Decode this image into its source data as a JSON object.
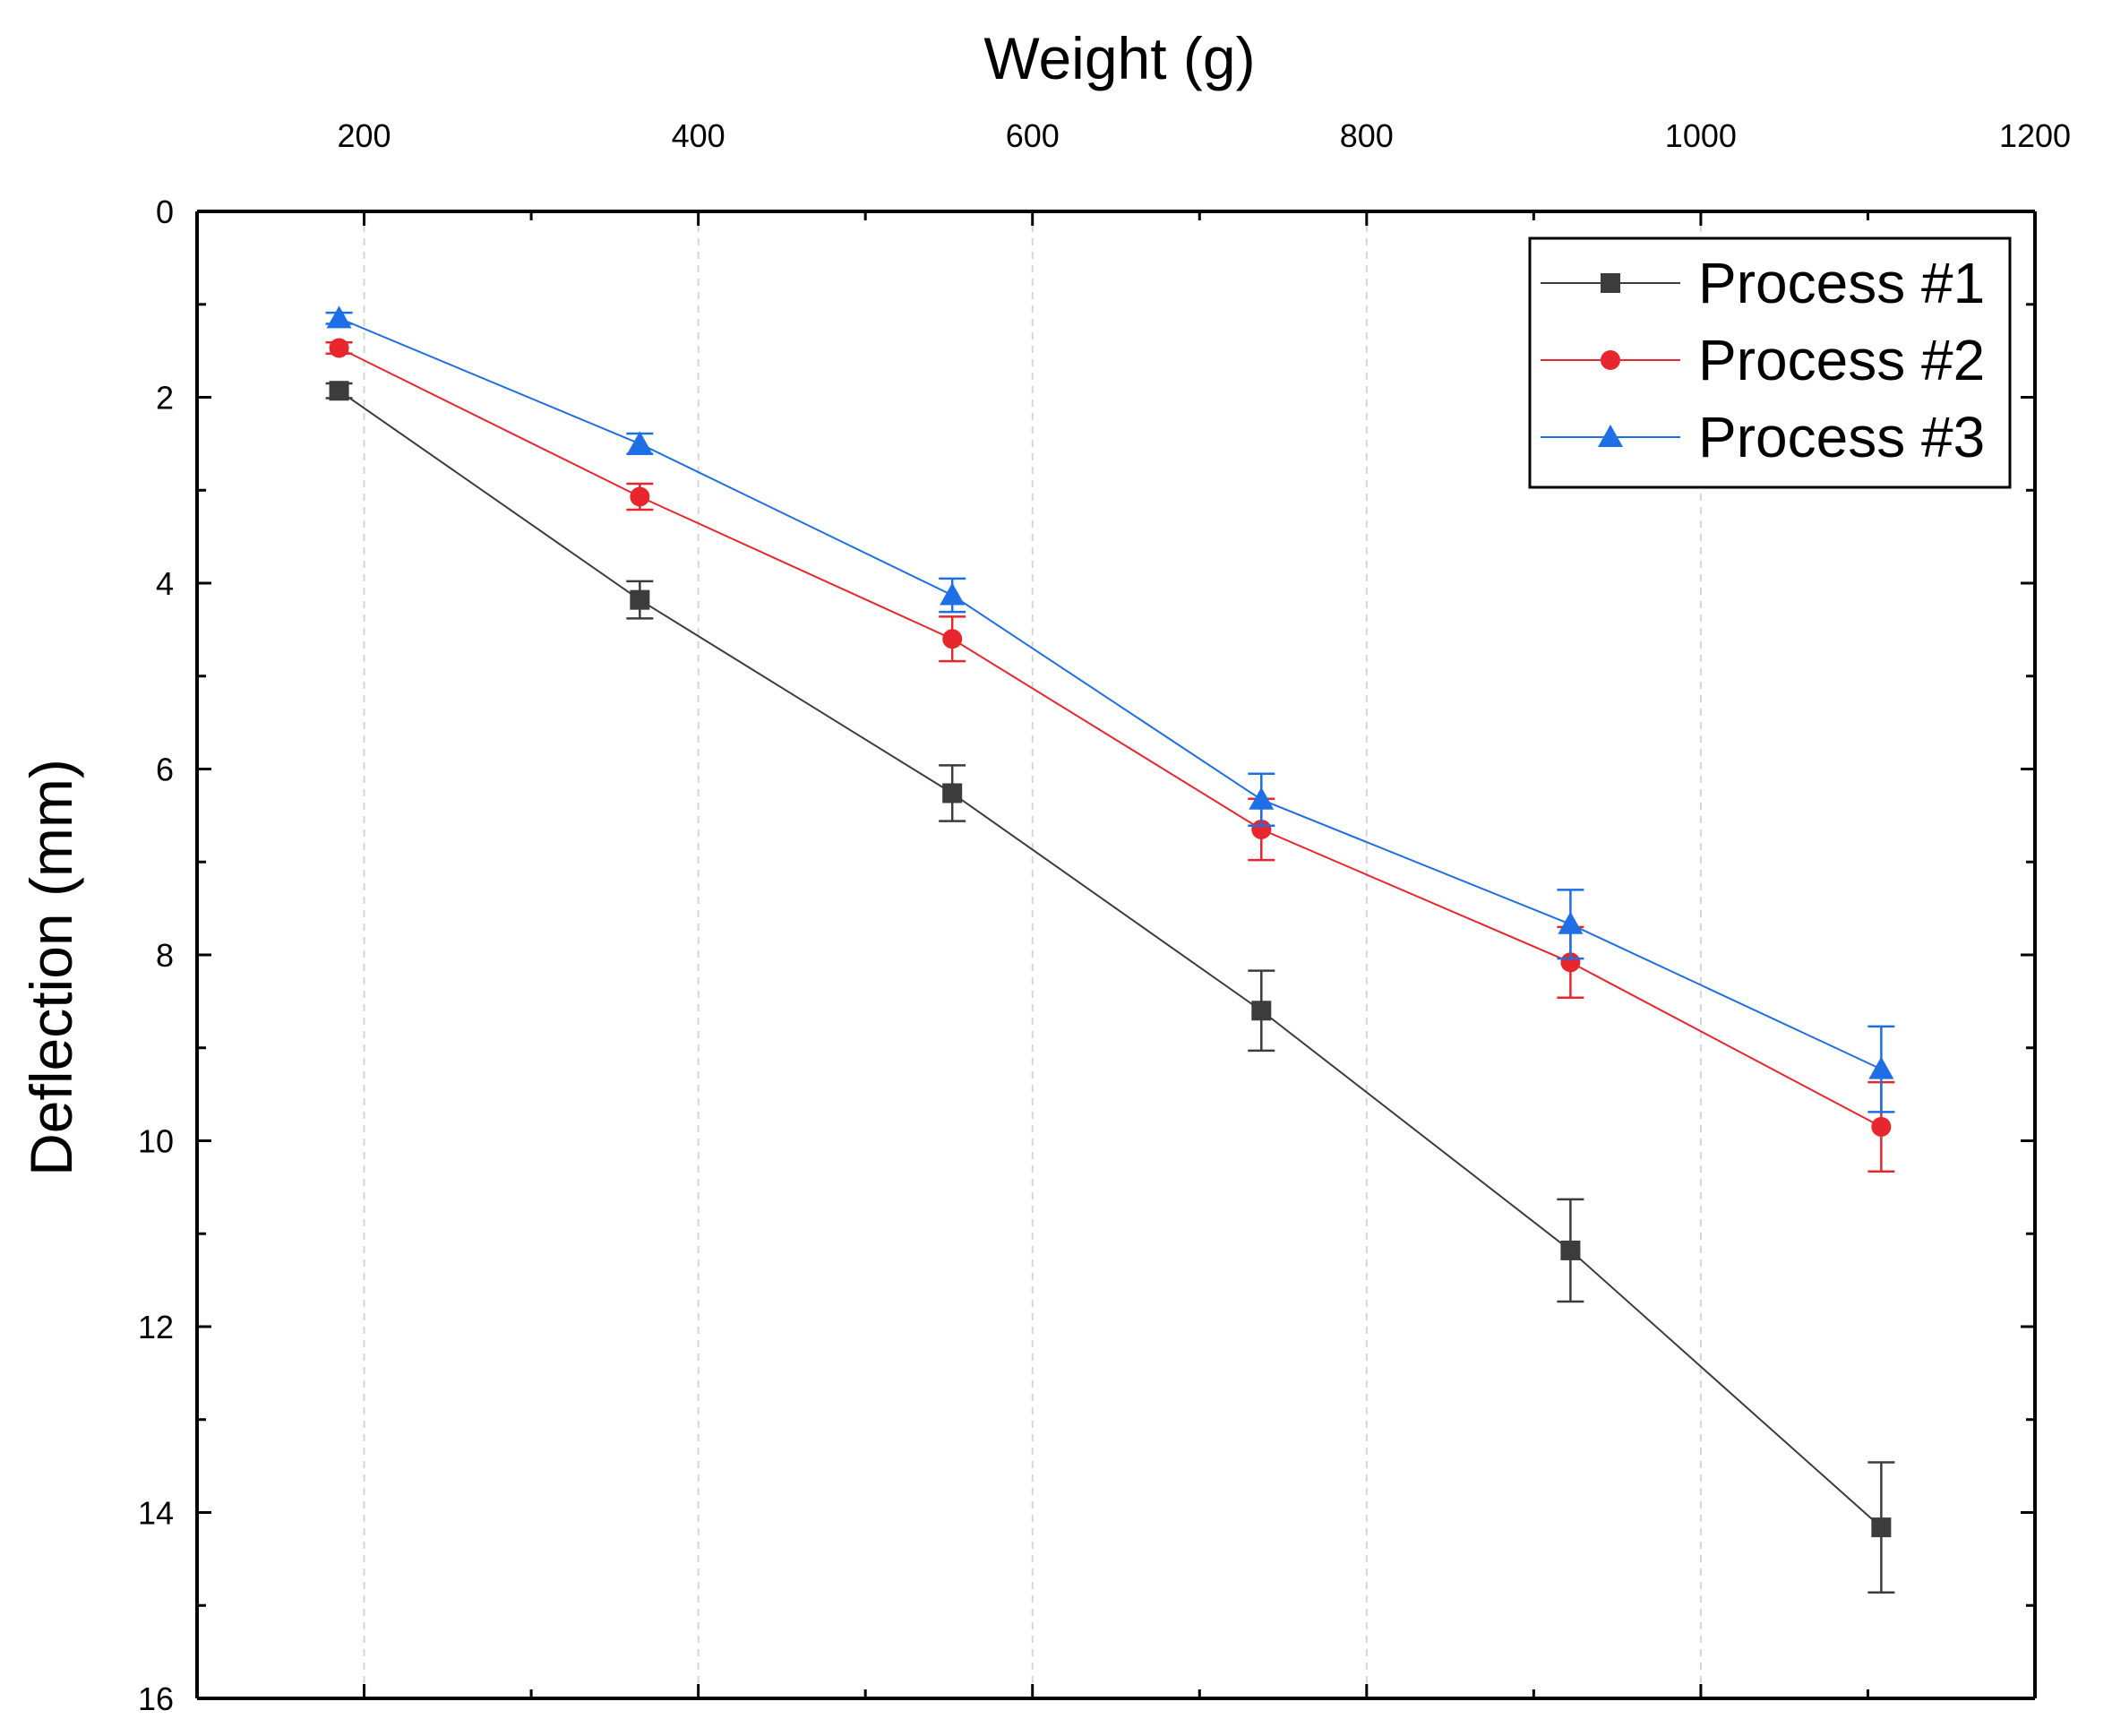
{
  "chart_data": {
    "type": "line",
    "title": "",
    "xlabel": "Weight (g)",
    "ylabel": "Deflection (mm)",
    "xaxis_position": "top",
    "y_inverted": true,
    "xlim": [
      100,
      1200
    ],
    "ylim": [
      0,
      16
    ],
    "xticks": [
      200,
      400,
      600,
      800,
      1000,
      1200
    ],
    "yticks": [
      0,
      2,
      4,
      6,
      8,
      10,
      12,
      14,
      16
    ],
    "grid": "vertical dashed",
    "legend_position": "top-right",
    "x": [
      185,
      365,
      552,
      737,
      922,
      1108
    ],
    "series": [
      {
        "name": "Process #1",
        "color": "#3c3c3c",
        "marker": "square",
        "values": [
          1.93,
          4.18,
          6.26,
          8.6,
          11.18,
          14.16
        ],
        "errors": [
          0.08,
          0.2,
          0.3,
          0.43,
          0.55,
          0.7
        ]
      },
      {
        "name": "Process #2",
        "color": "#e8262d",
        "marker": "circle",
        "values": [
          1.47,
          3.07,
          4.6,
          6.65,
          8.08,
          9.85
        ],
        "errors": [
          0.06,
          0.14,
          0.24,
          0.33,
          0.38,
          0.48
        ]
      },
      {
        "name": "Process #3",
        "color": "#1e6ee6",
        "marker": "triangle",
        "values": [
          1.15,
          2.5,
          4.13,
          6.33,
          7.67,
          9.23
        ],
        "errors": [
          0.06,
          0.11,
          0.18,
          0.28,
          0.37,
          0.46
        ]
      }
    ]
  }
}
